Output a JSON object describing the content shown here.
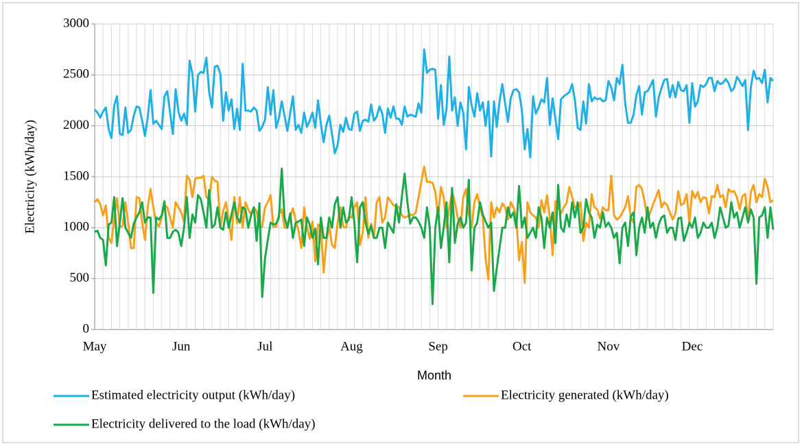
{
  "chart_data": {
    "type": "line",
    "xlabel": "Month",
    "ylabel": "Electricity  (kWh/day)",
    "categories": [
      "May",
      null,
      null,
      null,
      null,
      null,
      null,
      null,
      null,
      null,
      null,
      null,
      null,
      null,
      null,
      null,
      null,
      null,
      null,
      null,
      null,
      null,
      null,
      null,
      null,
      null,
      null,
      null,
      null,
      null,
      null,
      "Jun",
      null,
      null,
      null,
      null,
      null,
      null,
      null,
      null,
      null,
      null,
      null,
      null,
      null,
      null,
      null,
      null,
      null,
      null,
      null,
      null,
      null,
      null,
      null,
      null,
      null,
      null,
      null,
      null,
      null,
      "Jul",
      null,
      null,
      null,
      null,
      null,
      null,
      null,
      null,
      null,
      null,
      null,
      null,
      null,
      null,
      null,
      null,
      null,
      null,
      null,
      null,
      null,
      null,
      null,
      null,
      null,
      null,
      null,
      null,
      null,
      null,
      "Aug",
      null,
      null,
      null,
      null,
      null,
      null,
      null,
      null,
      null,
      null,
      null,
      null,
      null,
      null,
      null,
      null,
      null,
      null,
      null,
      null,
      null,
      null,
      null,
      null,
      null,
      null,
      null,
      null,
      null,
      null,
      "Sep",
      null,
      null,
      null,
      null,
      null,
      null,
      null,
      null,
      null,
      null,
      null,
      null,
      null,
      null,
      null,
      null,
      null,
      null,
      null,
      null,
      null,
      null,
      null,
      null,
      null,
      null,
      null,
      null,
      null,
      "Oct",
      null,
      null,
      null,
      null,
      null,
      null,
      null,
      null,
      null,
      null,
      null,
      null,
      null,
      null,
      null,
      null,
      null,
      null,
      null,
      null,
      null,
      null,
      null,
      null,
      null,
      null,
      null,
      null,
      null,
      null,
      "Nov",
      null,
      null,
      null,
      null,
      null,
      null,
      null,
      null,
      null,
      null,
      null,
      null,
      null,
      null,
      null,
      null,
      null,
      null,
      null,
      null,
      null,
      null,
      null,
      null,
      null,
      null,
      null,
      null,
      null,
      "Dec",
      null,
      null,
      null,
      null,
      null,
      null,
      null,
      null,
      null,
      null,
      null,
      null,
      null,
      null,
      null,
      null,
      null,
      null,
      null,
      null,
      null,
      null,
      null,
      null,
      null,
      null,
      null,
      null,
      null
    ],
    "series": [
      {
        "name": "Estimated electricity output (kWh/day)",
        "color": "#1fb0e6",
        "values": [
          2160,
          2130,
          2080,
          2140,
          2180,
          1970,
          1880,
          2200,
          2290,
          1920,
          1910,
          2180,
          1930,
          1960,
          2100,
          2190,
          2180,
          2050,
          1900,
          2080,
          2350,
          2020,
          2050,
          2010,
          1970,
          2290,
          2340,
          2130,
          1920,
          2360,
          2140,
          2050,
          2120,
          2010,
          2640,
          2510,
          2140,
          2500,
          2530,
          2520,
          2670,
          2330,
          2180,
          2580,
          2590,
          2510,
          2050,
          2330,
          2150,
          2260,
          1970,
          2170,
          1960,
          2610,
          2150,
          2150,
          2140,
          2180,
          2150,
          1950,
          1990,
          2060,
          2380,
          2110,
          2350,
          1980,
          2080,
          2240,
          2100,
          1950,
          2120,
          2290,
          1960,
          2010,
          1930,
          2130,
          1990,
          2050,
          2130,
          1980,
          2250,
          2020,
          1840,
          2010,
          2100,
          1920,
          1730,
          1810,
          2010,
          1940,
          2080,
          1970,
          1960,
          2120,
          2140,
          1950,
          2050,
          2060,
          2040,
          2210,
          2050,
          2090,
          2190,
          2120,
          1930,
          2170,
          2080,
          2190,
          2070,
          2070,
          2010,
          2190,
          2090,
          2110,
          2100,
          2090,
          2220,
          2130,
          2750,
          2520,
          2550,
          2560,
          2550,
          2070,
          2400,
          2010,
          2160,
          2680,
          2150,
          2280,
          2000,
          2230,
          2130,
          1770,
          2380,
          2200,
          2090,
          2320,
          2150,
          2230,
          2000,
          2240,
          1700,
          2240,
          1990,
          2240,
          2410,
          2220,
          2040,
          2270,
          2350,
          2360,
          2330,
          2150,
          1770,
          1970,
          1690,
          2290,
          2120,
          2180,
          2260,
          2230,
          2470,
          2010,
          2270,
          2070,
          1870,
          2260,
          2290,
          2310,
          2330,
          2410,
          2250,
          1980,
          1960,
          2240,
          2020,
          2410,
          2240,
          2280,
          2260,
          2270,
          2240,
          2250,
          2440,
          2380,
          2250,
          2470,
          2410,
          2600,
          2220,
          2030,
          2030,
          2110,
          2300,
          2390,
          2110,
          2330,
          2340,
          2390,
          2450,
          2090,
          2280,
          2370,
          2450,
          2460,
          2280,
          2400,
          2280,
          2430,
          2350,
          2340,
          2400,
          2030,
          2420,
          2190,
          2240,
          2400,
          2380,
          2410,
          2470,
          2470,
          2340,
          2440,
          2410,
          2420,
          2460,
          2420,
          2340,
          2370,
          2480,
          2440,
          2390,
          2450,
          1960,
          2380,
          2540,
          2460,
          2470,
          2420,
          2550,
          2230,
          2470,
          2440
        ]
      },
      {
        "name": "Electricity generated (kWh/day)",
        "color": "#f7a11a",
        "values": [
          1250,
          1280,
          1230,
          1120,
          1220,
          900,
          850,
          1100,
          1290,
          1000,
          1020,
          1250,
          1050,
          800,
          800,
          1300,
          1290,
          1050,
          880,
          1200,
          1380,
          1200,
          1050,
          1010,
          1100,
          1220,
          1200,
          1100,
          1000,
          1250,
          1200,
          1150,
          1060,
          1510,
          1470,
          1300,
          1480,
          1490,
          1490,
          1510,
          1300,
          1270,
          1500,
          1460,
          1450,
          1000,
          1160,
          1250,
          1080,
          880,
          1300,
          1040,
          1300,
          1000,
          1250,
          1180,
          1130,
          1200,
          1160,
          1000,
          1010,
          1200,
          1250,
          1320,
          1010,
          1010,
          1130,
          1180,
          1000,
          1000,
          1100,
          1190,
          1070,
          970,
          800,
          1200,
          1010,
          890,
          1060,
          670,
          1030,
          1020,
          560,
          870,
          1020,
          830,
          800,
          1050,
          1200,
          1010,
          1000,
          1110,
          1100,
          1200,
          1250,
          830,
          950,
          1300,
          900,
          1040,
          900,
          1250,
          1300,
          1050,
          1100,
          1300,
          1260,
          1220,
          1210,
          1200,
          1120,
          1100,
          1110,
          1130,
          1120,
          1150,
          1300,
          1450,
          1600,
          1450,
          1450,
          1440,
          1350,
          1100,
          1400,
          1300,
          1000,
          1200,
          1350,
          1250,
          1100,
          1000,
          1300,
          1380,
          1130,
          1000,
          1250,
          1330,
          1200,
          1100,
          700,
          490,
          1250,
          1100,
          1200,
          1150,
          1240,
          1200,
          1080,
          1250,
          1200,
          1100,
          680,
          860,
          460,
          1250,
          1150,
          1120,
          1100,
          1000,
          1270,
          1150,
          1320,
          1100,
          730,
          1260,
          1200,
          1140,
          1200,
          1240,
          1400,
          1300,
          1200,
          1180,
          1250,
          870,
          1050,
          1000,
          1330,
          1200,
          1180,
          1090,
          1200,
          1170,
          1170,
          1510,
          1120,
          1080,
          1100,
          1150,
          1200,
          1310,
          1100,
          1050,
          1400,
          1420,
          1380,
          1250,
          1080,
          1150,
          1230,
          1300,
          1370,
          1200,
          1250,
          1220,
          1150,
          1080,
          1140,
          1360,
          1220,
          1240,
          1330,
          1050,
          1360,
          1290,
          1350,
          1250,
          1300,
          1290,
          1140,
          1310,
          1300,
          1420,
          1300,
          1320,
          1200,
          1380,
          1350,
          1360,
          1300,
          1180,
          1310,
          1330,
          1050,
          1350,
          1420,
          1250,
          1330,
          1300,
          1480,
          1400,
          1250,
          1270
        ]
      },
      {
        "name": "Electricity delivered to the load (kWh/day)",
        "color": "#1aa84b",
        "values": [
          960,
          970,
          900,
          880,
          630,
          1030,
          1050,
          1300,
          820,
          1050,
          1290,
          1000,
          950,
          900,
          1040,
          1100,
          1150,
          1250,
          1050,
          1100,
          1100,
          360,
          1100,
          1080,
          1120,
          1260,
          900,
          900,
          960,
          980,
          950,
          820,
          1000,
          1300,
          900,
          1130,
          1050,
          1320,
          1280,
          1150,
          1000,
          1370,
          1000,
          1030,
          1200,
          1000,
          980,
          1150,
          1000,
          1130,
          1250,
          1100,
          1050,
          1200,
          1180,
          1000,
          1120,
          1200,
          870,
          1240,
          320,
          700,
          880,
          1050,
          1030,
          1040,
          1100,
          1580,
          1100,
          1000,
          1140,
          900,
          1050,
          1060,
          1080,
          820,
          1100,
          1030,
          900,
          990,
          640,
          1100,
          900,
          900,
          1100,
          1000,
          1230,
          1300,
          1000,
          1200,
          1050,
          1080,
          1300,
          1050,
          660,
          1200,
          1250,
          1050,
          940,
          1020,
          900,
          900,
          1000,
          1000,
          800,
          1050,
          1000,
          950,
          1230,
          1050,
          1300,
          1530,
          1250,
          1040,
          1100,
          1100,
          1060,
          1000,
          900,
          1200,
          1000,
          250,
          1000,
          1200,
          800,
          1000,
          1250,
          660,
          1390,
          850,
          1040,
          1100,
          1000,
          1050,
          1470,
          580,
          1000,
          1050,
          1250,
          1130,
          1060,
          1000,
          1050,
          380,
          600,
          800,
          1000,
          1000,
          1200,
          1100,
          1150,
          1000,
          1410,
          1000,
          1100,
          900,
          950,
          1000,
          900,
          1200,
          1100,
          800,
          1100,
          1000,
          1150,
          850,
          1420,
          1000,
          960,
          1130,
          1010,
          1250,
          1100,
          1250,
          950,
          1000,
          1280,
          1150,
          1100,
          900,
          1030,
          1000,
          1150,
          1010,
          1050,
          1000,
          900,
          950,
          650,
          1000,
          1050,
          820,
          1110,
          1150,
          730,
          1000,
          1100,
          950,
          1200,
          1000,
          1050,
          900,
          1030,
          1100,
          1120,
          950,
          1000,
          1000,
          880,
          1090,
          1100,
          870,
          950,
          1050,
          1000,
          1100,
          900,
          950,
          1050,
          1000,
          1000,
          1050,
          900,
          1000,
          1200,
          1100,
          1000,
          1020,
          1250,
          1100,
          1150,
          1000,
          1100,
          1200,
          1050,
          1180,
          1100,
          450,
          1100,
          1120,
          1200,
          900,
          1200,
          980
        ]
      }
    ],
    "ylim": [
      0,
      3000
    ],
    "yticks": [
      0,
      500,
      1000,
      1500,
      2000,
      2500,
      3000
    ],
    "grid": true
  }
}
